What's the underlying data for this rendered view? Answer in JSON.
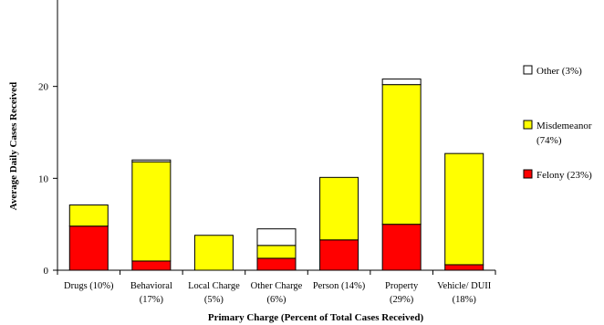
{
  "chart_data": {
    "type": "bar",
    "stacked": true,
    "title": "",
    "xlabel": "Primary Charge (Percent of Total Cases Received)",
    "ylabel": "Average Daily Cases Received",
    "ylim": [
      0,
      30
    ],
    "yticks": [
      0,
      10,
      20
    ],
    "grid": false,
    "legend_position": "right",
    "categories": [
      [
        "Drugs (10%)"
      ],
      [
        "Behavioral",
        "(17%)"
      ],
      [
        "Local Charge",
        "(5%)"
      ],
      [
        "Other Charge",
        "(6%)"
      ],
      [
        "Person (14%)"
      ],
      [
        "Property",
        "(29%)"
      ],
      [
        "Vehicle/ DUII",
        "(18%)"
      ]
    ],
    "series": [
      {
        "name": "Felony (23%)",
        "color": "#ff0000",
        "values": [
          4.8,
          1.0,
          0.0,
          1.3,
          3.3,
          5.0,
          0.6
        ]
      },
      {
        "name": "Misdemeanor (74%)",
        "color": "#ffff00",
        "values": [
          2.3,
          10.8,
          3.8,
          1.4,
          6.8,
          15.2,
          12.1
        ]
      },
      {
        "name": "Other (3%)",
        "color": "#ffffff",
        "values": [
          0.0,
          0.2,
          0.0,
          1.8,
          0.0,
          0.6,
          0.0
        ]
      }
    ],
    "legend": [
      {
        "lines": [
          "Other (3%)"
        ],
        "color": "#ffffff"
      },
      {
        "lines": [
          "Misdemeanor",
          "(74%)"
        ],
        "color": "#ffff00"
      },
      {
        "lines": [
          "Felony (23%)"
        ],
        "color": "#ff0000"
      }
    ]
  }
}
